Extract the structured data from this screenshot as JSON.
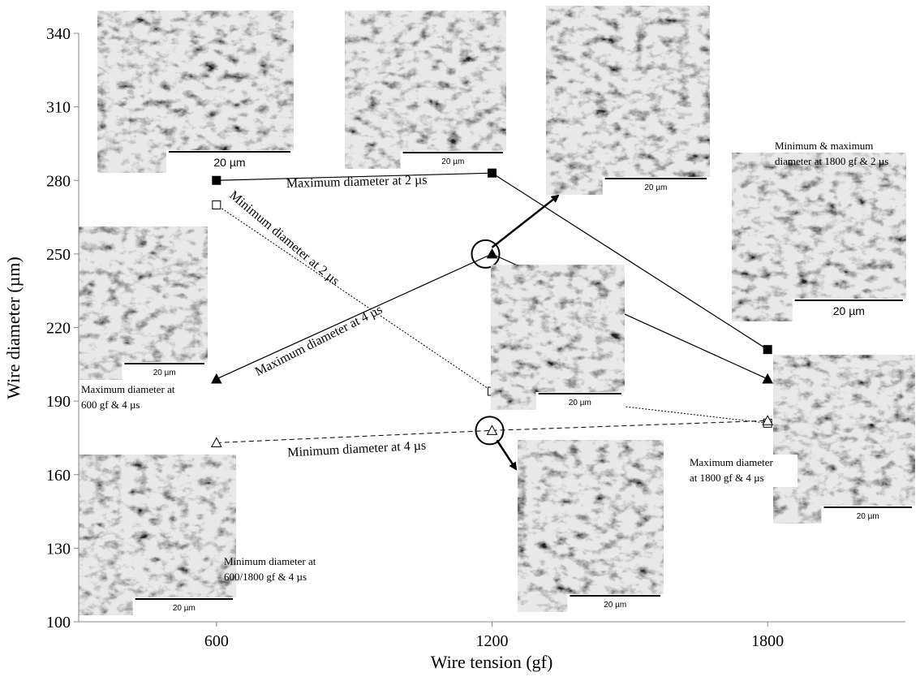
{
  "chart_data": {
    "type": "line",
    "x_label": "Wire tension (gf)",
    "y_label": "Wire diameter (µm)",
    "x": [
      600,
      1200,
      1800
    ],
    "xlim": [
      300,
      2100
    ],
    "xticks": [
      600,
      1200,
      1800
    ],
    "ylim": [
      100,
      340
    ],
    "yticks": [
      100,
      130,
      160,
      190,
      220,
      250,
      280,
      310,
      340
    ],
    "series": [
      {
        "name": "Maximum diameter at 2 µs",
        "color": "#000000",
        "marker": "square",
        "filled": true,
        "line_style": "solid",
        "values": [
          280,
          283,
          211
        ]
      },
      {
        "name": "Minimum diameter at 2 µs",
        "color": "#000000",
        "marker": "square",
        "filled": false,
        "line_style": "dotted",
        "values": [
          270,
          194,
          181
        ]
      },
      {
        "name": "Maximum diameter at 4 µs",
        "color": "#000000",
        "marker": "triangle",
        "filled": true,
        "line_style": "solid",
        "values": [
          199,
          250,
          199
        ]
      },
      {
        "name": "Minimum diameter at 4 µs",
        "color": "#000000",
        "marker": "triangle",
        "filled": false,
        "line_style": "dashed",
        "values": [
          173,
          178,
          182
        ]
      }
    ],
    "scale_bar_label": "20 µm",
    "annotations": [
      [
        "Minimum & maximum",
        "diameter at 1800 gf & 2 µs"
      ],
      [
        "Maximum diameter at",
        "600  gf & 4 µs"
      ],
      [
        "Minimum diameter at",
        "600/1800 gf & 4 µs"
      ],
      [
        "Maximum diameter",
        "at 1800  gf & 4 µs"
      ]
    ]
  }
}
